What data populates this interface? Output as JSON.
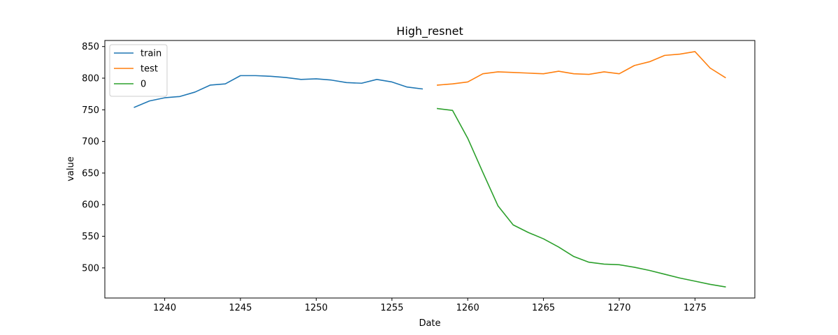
{
  "chart_data": {
    "type": "line",
    "title": "High_resnet",
    "xlabel": "Date",
    "ylabel": "value",
    "xlim": [
      1236.05,
      1278.95
    ],
    "ylim": [
      452.4,
      859.6
    ],
    "xticks": [
      1240,
      1245,
      1250,
      1255,
      1260,
      1265,
      1270,
      1275
    ],
    "yticks": [
      500,
      550,
      600,
      650,
      700,
      750,
      800,
      850
    ],
    "grid": false,
    "legend_position": "top-left",
    "series": [
      {
        "name": "train",
        "color": "#1f77b4",
        "x": [
          1238,
          1239,
          1240,
          1241,
          1242,
          1243,
          1244,
          1245,
          1246,
          1247,
          1248,
          1249,
          1250,
          1251,
          1252,
          1253,
          1254,
          1255,
          1256,
          1257
        ],
        "y": [
          754,
          764,
          769,
          771,
          778,
          789,
          791,
          804,
          804,
          803,
          801,
          798,
          799,
          797,
          793,
          792,
          798,
          794,
          786,
          783
        ]
      },
      {
        "name": "test",
        "color": "#ff7f0e",
        "x": [
          1258,
          1259,
          1260,
          1261,
          1262,
          1263,
          1264,
          1265,
          1266,
          1267,
          1268,
          1269,
          1270,
          1271,
          1272,
          1273,
          1274,
          1275,
          1276,
          1277
        ],
        "y": [
          789,
          791,
          794,
          807,
          810,
          809,
          808,
          807,
          811,
          807,
          806,
          810,
          807,
          820,
          826,
          836,
          838,
          842,
          816,
          801
        ]
      },
      {
        "name": "0",
        "color": "#2ca02c",
        "x": [
          1258,
          1259,
          1260,
          1261,
          1262,
          1263,
          1264,
          1265,
          1266,
          1267,
          1268,
          1269,
          1270,
          1271,
          1272,
          1273,
          1274,
          1275,
          1276,
          1277
        ],
        "y": [
          752,
          749,
          705,
          651,
          598,
          568,
          556,
          546,
          533,
          518,
          509,
          506,
          505,
          501,
          496,
          490,
          484,
          479,
          474,
          470
        ]
      }
    ]
  }
}
